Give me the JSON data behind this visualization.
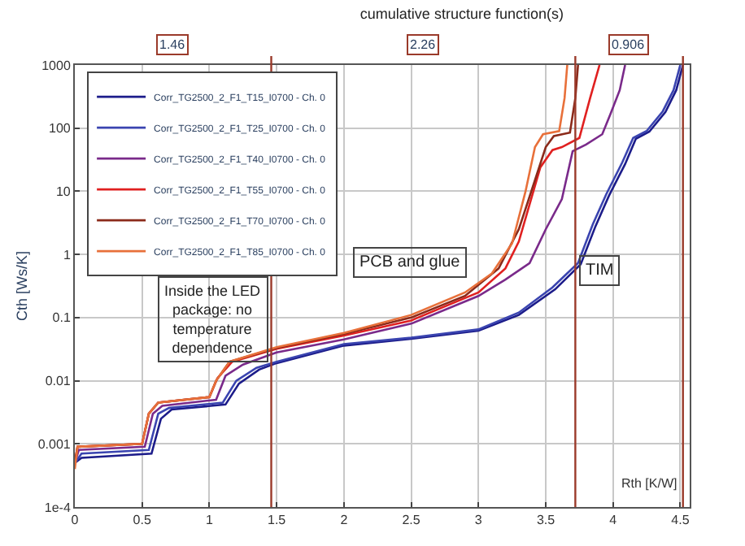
{
  "chart_data": {
    "type": "line",
    "title": "cumulative structure function(s)",
    "xlabel": "Rth [K/W]",
    "ylabel": "Cth [Ws/K]",
    "log": "y",
    "grid": true,
    "legend": "top left",
    "line_style": "solid",
    "xlim": [
      0,
      4.57
    ],
    "xticks": [
      0,
      0.5,
      1,
      1.5,
      2,
      2.5,
      3,
      3.5,
      4,
      4.5
    ],
    "ylim": [
      0.0001,
      1000
    ],
    "yticks": [
      {
        "value": 0.0001,
        "label": "1e-4"
      },
      0.001,
      0.01,
      0.1,
      1,
      10,
      100,
      1000
    ],
    "ref_lines": [
      {
        "axis": "x",
        "value": 1.46,
        "color": "#9a3a2a"
      },
      {
        "axis": "x",
        "value": 3.72,
        "color": "#9a3a2a"
      },
      {
        "axis": "x",
        "value": 4.52,
        "color": "#9a3a2a"
      }
    ],
    "annotations": [
      "1.46",
      "2.26",
      "0.906",
      "Inside the LED package: no temperature dependence",
      "PCB and glue",
      "TIM"
    ],
    "series": [
      {
        "name": "Corr_TG2500_2_F1_T15_I0700 - Ch. 0",
        "color": "#1c1c8a",
        "x": [
          0,
          0.05,
          0.57,
          0.64,
          0.72,
          1.12,
          1.22,
          1.37,
          1.5,
          2.0,
          2.5,
          3.0,
          3.3,
          3.57,
          3.76,
          3.87,
          3.97,
          4.09,
          4.17,
          4.27,
          4.39,
          4.47,
          4.52
        ],
        "values": [
          0.0005,
          0.0006,
          0.0007,
          0.0025,
          0.0035,
          0.0042,
          0.009,
          0.015,
          0.019,
          0.036,
          0.046,
          0.062,
          0.11,
          0.28,
          0.7,
          2.8,
          8.5,
          27,
          68,
          88,
          180,
          400,
          1000
        ]
      },
      {
        "name": "Corr_TG2500_2_F1_T25_I0700 - Ch. 0",
        "color": "#3a44b0",
        "x": [
          0,
          0.05,
          0.55,
          0.62,
          0.7,
          1.1,
          1.2,
          1.35,
          1.5,
          2.0,
          2.5,
          3.0,
          3.3,
          3.55,
          3.74,
          3.85,
          3.95,
          4.07,
          4.15,
          4.25,
          4.37,
          4.45,
          4.5
        ],
        "values": [
          0.0005,
          0.0007,
          0.0008,
          0.003,
          0.0037,
          0.0045,
          0.01,
          0.016,
          0.02,
          0.038,
          0.048,
          0.065,
          0.12,
          0.3,
          0.73,
          3,
          9,
          29,
          70,
          90,
          185,
          400,
          1000
        ]
      },
      {
        "name": "Corr_TG2500_2_F1_T40_I0700 - Ch. 0",
        "color": "#7a2a8a",
        "x": [
          0,
          0.03,
          0.52,
          0.58,
          0.65,
          1.05,
          1.12,
          1.25,
          1.5,
          2.0,
          2.5,
          3.0,
          3.2,
          3.38,
          3.5,
          3.62,
          3.7,
          3.8,
          3.92,
          3.98,
          4.05,
          4.09
        ],
        "values": [
          0.0005,
          0.0008,
          0.0009,
          0.003,
          0.004,
          0.005,
          0.012,
          0.018,
          0.028,
          0.045,
          0.08,
          0.22,
          0.4,
          0.73,
          2.5,
          7.5,
          43,
          55,
          80,
          165,
          400,
          1000
        ]
      },
      {
        "name": "Corr_TG2500_2_F1_T55_I0700 - Ch. 0",
        "color": "#e02020",
        "x": [
          0,
          0.02,
          0.5,
          0.55,
          0.62,
          1.0,
          1.06,
          1.17,
          1.5,
          2.0,
          2.5,
          3.0,
          3.2,
          3.3,
          3.46,
          3.55,
          3.62,
          3.75,
          3.83,
          3.9
        ],
        "values": [
          0.0005,
          0.0009,
          0.001,
          0.003,
          0.0045,
          0.0055,
          0.011,
          0.02,
          0.032,
          0.052,
          0.09,
          0.25,
          0.6,
          1.6,
          24,
          45,
          50,
          70,
          300,
          1000
        ]
      },
      {
        "name": "Corr_TG2500_2_F1_T70_I0700 - Ch. 0",
        "color": "#8b2a1a",
        "x": [
          0,
          0.02,
          0.5,
          0.55,
          0.62,
          1.0,
          1.05,
          1.15,
          1.5,
          2.0,
          2.5,
          2.9,
          3.15,
          3.3,
          3.42,
          3.5,
          3.56,
          3.68,
          3.72,
          3.74
        ],
        "values": [
          0.0005,
          0.0009,
          0.001,
          0.003,
          0.0045,
          0.0055,
          0.01,
          0.02,
          0.033,
          0.055,
          0.1,
          0.22,
          0.6,
          2.5,
          15,
          50,
          75,
          85,
          300,
          1000
        ]
      },
      {
        "name": "Corr_TG2500_2_F1_T85_I0700 - Ch. 0",
        "color": "#e8703a",
        "x": [
          0,
          0.02,
          0.5,
          0.55,
          0.62,
          1.0,
          1.05,
          1.15,
          1.5,
          2.0,
          2.5,
          2.9,
          3.1,
          3.25,
          3.35,
          3.42,
          3.48,
          3.6,
          3.64,
          3.66
        ],
        "values": [
          0.0004,
          0.0009,
          0.001,
          0.003,
          0.0045,
          0.0055,
          0.01,
          0.02,
          0.034,
          0.057,
          0.11,
          0.25,
          0.5,
          1.5,
          10,
          50,
          80,
          90,
          300,
          1000
        ]
      }
    ]
  }
}
